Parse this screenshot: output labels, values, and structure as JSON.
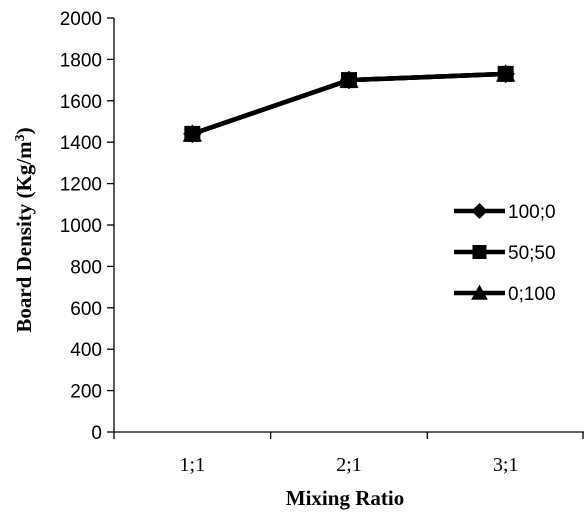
{
  "chart_data": {
    "type": "line",
    "categories": [
      "1;1",
      "2;1",
      "3;1"
    ],
    "series": [
      {
        "name": "100;0",
        "marker": "diamond",
        "color": "#000000",
        "values": [
          1440,
          1700,
          1730
        ]
      },
      {
        "name": "50;50",
        "marker": "square",
        "color": "#000000",
        "values": [
          1440,
          1700,
          1730
        ]
      },
      {
        "name": "0;100",
        "marker": "triangle",
        "color": "#000000",
        "values": [
          1440,
          1700,
          1730
        ]
      }
    ],
    "xlabel": "Mixing Ratio",
    "ylabel": "Board Density (Kg/m³)",
    "ylabel_base": "Board Density (Kg/m",
    "ylabel_sup": "3",
    "ylabel_close": ")",
    "ylim": [
      0,
      2000
    ],
    "yticks": [
      0,
      200,
      400,
      600,
      800,
      1000,
      1200,
      1400,
      1600,
      1800,
      2000
    ],
    "grid": false,
    "legend_position": "right"
  }
}
